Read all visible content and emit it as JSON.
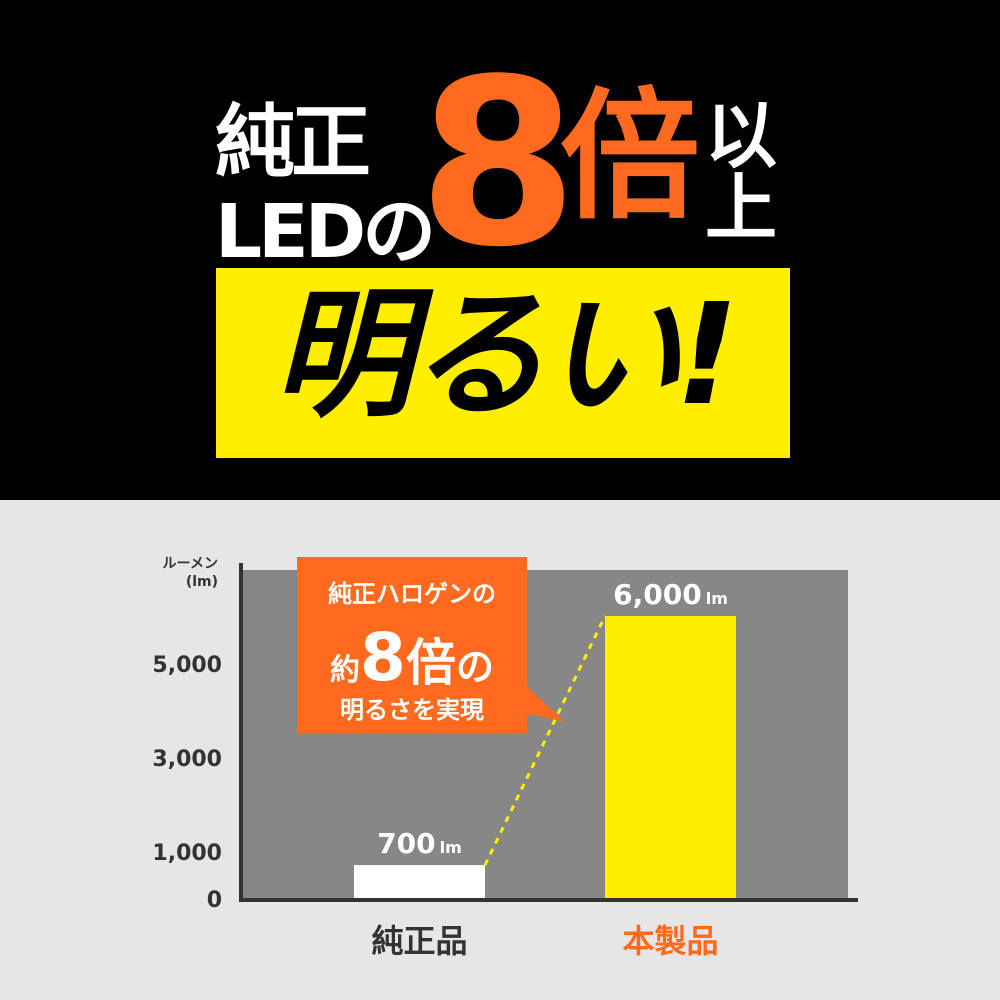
{
  "headline": {
    "line1": "純正",
    "line2": "LEDの",
    "multiplier": "8",
    "times": "倍",
    "above1": "以",
    "above2": "上",
    "banner": "明るい!"
  },
  "colors": {
    "orange": "#ff6a1f",
    "yellow": "#ffee00",
    "plot_bg": "#878787",
    "dark": "#333333"
  },
  "callout": {
    "line1": "純正ハロゲンの",
    "prefix": "約",
    "number": "8",
    "times": "倍",
    "suffix": "の",
    "line3": "明るさを実現"
  },
  "chart_data": {
    "type": "bar",
    "ylabel": "ルーメン",
    "yunit": "(lm)",
    "yticks": [
      "0",
      "1,000",
      "3,000",
      "5,000"
    ],
    "ylim": [
      0,
      7000
    ],
    "categories": [
      "純正品",
      "本製品"
    ],
    "values": [
      700,
      6000
    ],
    "value_labels": [
      "700",
      "6,000"
    ],
    "value_unit": "lm",
    "bar_colors": [
      "#ffffff",
      "#ffee00"
    ],
    "category_colors": [
      "#333333",
      "#ff6a1f"
    ]
  }
}
